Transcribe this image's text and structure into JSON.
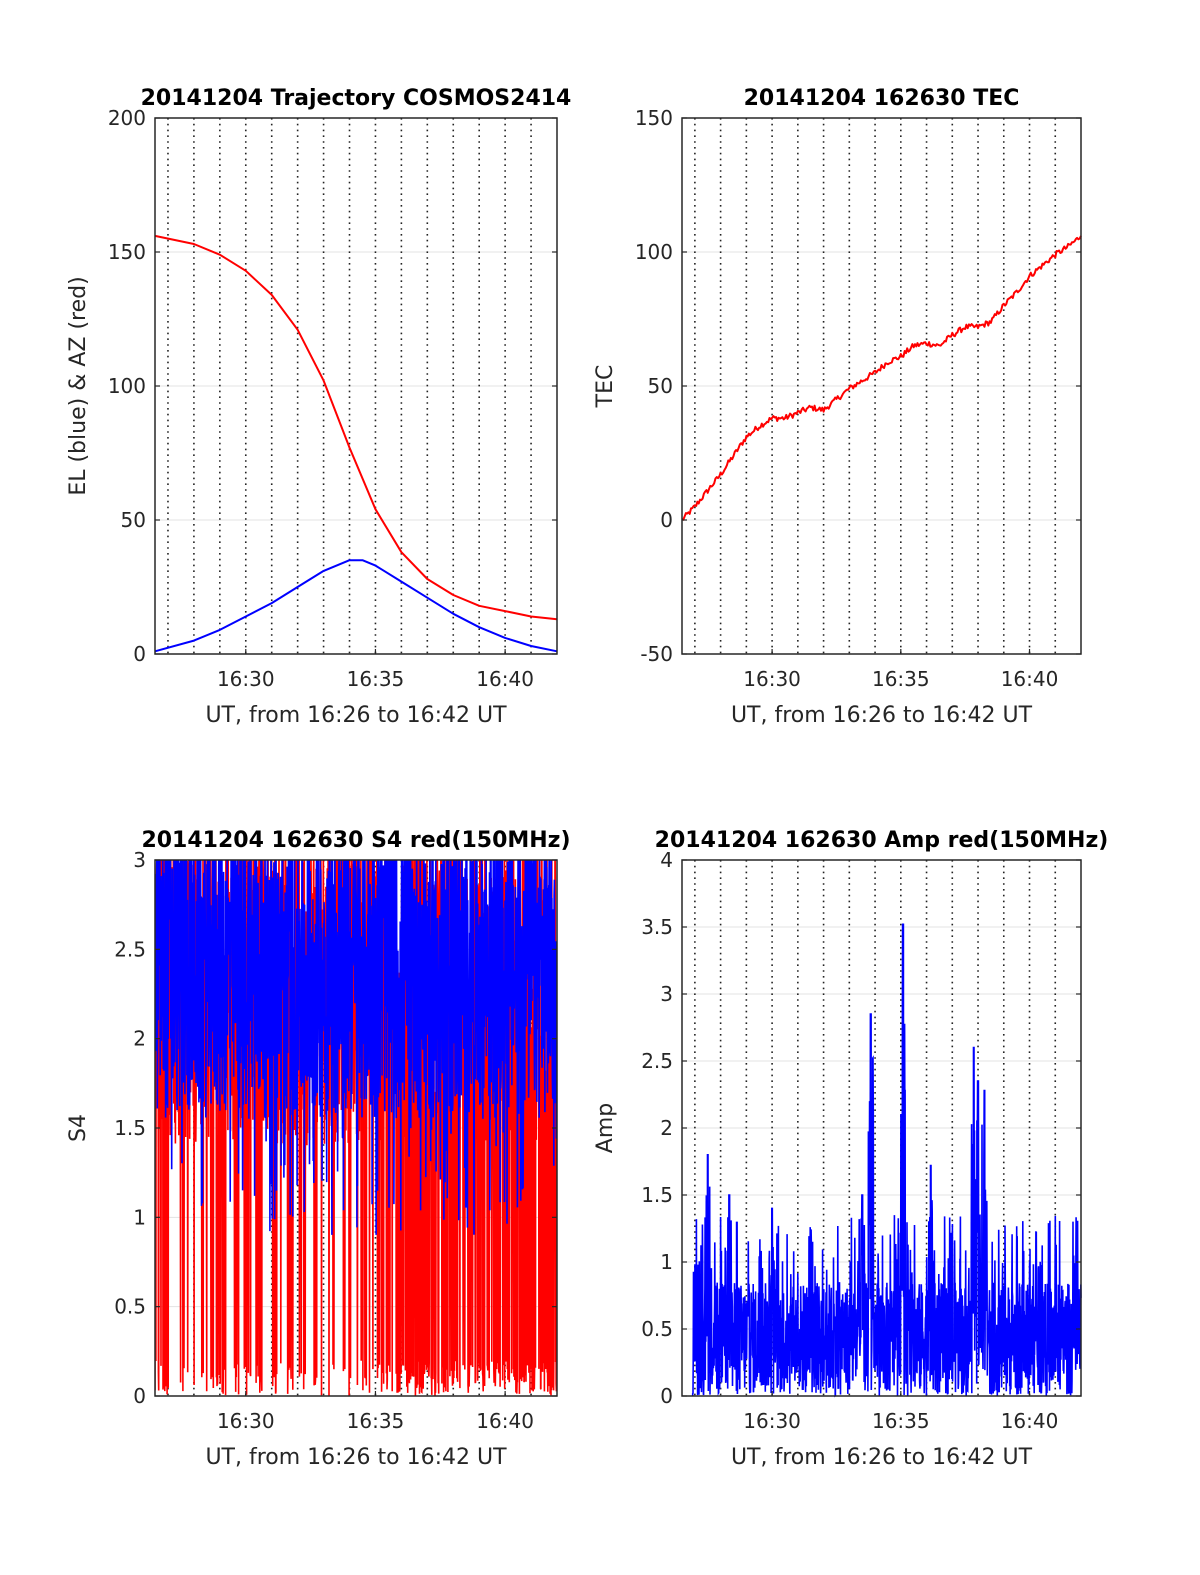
{
  "chart_data": [
    {
      "type": "line",
      "title": "20141204 Trajectory COSMOS2414",
      "xlabel": "UT, from 16:26 to 16:42 UT",
      "ylabel": "EL (blue) & AZ (red)",
      "xlim": [
        "16:26:30",
        "16:42:00"
      ],
      "ylim": [
        0,
        200
      ],
      "xticks": [
        "16:30",
        "16:35",
        "16:40"
      ],
      "yticks": [
        "0",
        "50",
        "100",
        "150",
        "200"
      ],
      "grid": "y-solid, x-dotted every minute",
      "series": [
        {
          "color": "#ff0000",
          "x": [
            "16:26:30",
            "16:28",
            "16:29",
            "16:30",
            "16:31",
            "16:32",
            "16:33",
            "16:34",
            "16:35",
            "16:36",
            "16:37",
            "16:38",
            "16:39",
            "16:40",
            "16:41",
            "16:42"
          ],
          "values": [
            156,
            153,
            149,
            143,
            134,
            121,
            102,
            77,
            54,
            38,
            28,
            22,
            18,
            16,
            14,
            13
          ]
        },
        {
          "color": "#0000ff",
          "x": [
            "16:26:30",
            "16:28",
            "16:29",
            "16:30",
            "16:31",
            "16:32",
            "16:33",
            "16:34",
            "16:34:30",
            "16:35",
            "16:36",
            "16:37",
            "16:38",
            "16:39",
            "16:40",
            "16:41",
            "16:42"
          ],
          "values": [
            1,
            5,
            9,
            14,
            19,
            25,
            31,
            35,
            35,
            33,
            27,
            21,
            15,
            10,
            6,
            3,
            1
          ]
        }
      ]
    },
    {
      "type": "line",
      "title": "20141204 162630 TEC",
      "xlabel": "UT, from 16:26 to 16:42 UT",
      "ylabel": "TEC",
      "xlim": [
        "16:26:30",
        "16:42:00"
      ],
      "ylim": [
        -50,
        150
      ],
      "xticks": [
        "16:30",
        "16:35",
        "16:40"
      ],
      "yticks": [
        "-50",
        "0",
        "50",
        "100",
        "150"
      ],
      "grid": "y-solid, x-dotted every minute",
      "series": [
        {
          "color": "#ff0000",
          "x": [
            "16:26:30",
            "16:27",
            "16:27:30",
            "16:28",
            "16:28:30",
            "16:29",
            "16:29:30",
            "16:30",
            "16:30:30",
            "16:31",
            "16:31:30",
            "16:32",
            "16:32:30",
            "16:33",
            "16:33:30",
            "16:34",
            "16:34:30",
            "16:35",
            "16:35:30",
            "16:36",
            "16:36:30",
            "16:37",
            "16:37:30",
            "16:38",
            "16:38:30",
            "16:39",
            "16:39:30",
            "16:40",
            "16:40:30",
            "16:41",
            "16:41:30",
            "16:42"
          ],
          "values": [
            0,
            5,
            11,
            17,
            24,
            31,
            35,
            38,
            38,
            40,
            42,
            41,
            45,
            49,
            52,
            55,
            59,
            61,
            65,
            66,
            65,
            69,
            72,
            72,
            74,
            80,
            85,
            91,
            95,
            99,
            102,
            106
          ]
        }
      ]
    },
    {
      "type": "line",
      "title": "20141204 162630 S4 red(150MHz)",
      "xlabel": "UT, from 16:26 to 16:42 UT",
      "ylabel": "S4",
      "xlim": [
        "16:26:30",
        "16:42:00"
      ],
      "ylim": [
        0,
        3
      ],
      "xticks": [
        "16:30",
        "16:35",
        "16:40"
      ],
      "yticks": [
        "0",
        "0.5",
        "1",
        "1.5",
        "2",
        "2.5",
        "3"
      ],
      "grid": "y-solid, x-dotted every minute",
      "series": [
        {
          "color": "#ff0000",
          "note_range": [
            0,
            3
          ]
        },
        {
          "color": "#0000ff",
          "note_range": [
            0.9,
            3
          ]
        }
      ]
    },
    {
      "type": "line",
      "title": "20141204 162630 Amp red(150MHz)",
      "xlabel": "UT, from 16:26 to 16:42 UT",
      "ylabel": "Amp",
      "xlim": [
        "16:26:30",
        "16:42:00"
      ],
      "ylim": [
        0,
        4
      ],
      "xticks": [
        "16:30",
        "16:35",
        "16:40"
      ],
      "yticks": [
        "0",
        "0.5",
        "1",
        "1.5",
        "2",
        "2.5",
        "3",
        "3.5",
        "4"
      ],
      "grid": "y-solid, x-dotted every minute",
      "series": [
        {
          "color": "#0000ff",
          "x": [
            "16:27:30",
            "16:28:20",
            "16:30:00",
            "16:33:30",
            "16:33:50",
            "16:35:05",
            "16:36:10",
            "16:37:50",
            "16:38:00",
            "16:38:15"
          ],
          "values": [
            1.8,
            1.5,
            1.4,
            1.5,
            2.85,
            3.52,
            1.72,
            2.6,
            2.35,
            2.28
          ]
        }
      ]
    }
  ]
}
